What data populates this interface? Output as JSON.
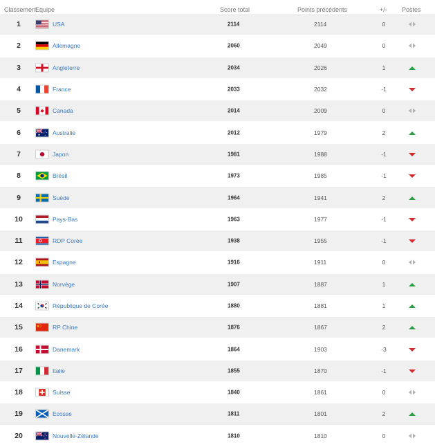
{
  "header": {
    "rank": "Classement",
    "team": "Equipe",
    "score": "Score total",
    "previous": "Points précédents",
    "diff": "+/-",
    "positions": "Postes"
  },
  "colors": {
    "up": "#2e9e45",
    "down": "#d32b2b",
    "same": "#b0b0b0",
    "link": "#3a79c1"
  },
  "rows": [
    {
      "rank": "1",
      "team": "USA",
      "flag": "usa",
      "score": "2114",
      "previous": "2114",
      "diff": "0",
      "trend": "same"
    },
    {
      "rank": "2",
      "team": "Allemagne",
      "flag": "germany",
      "score": "2060",
      "previous": "2049",
      "diff": "0",
      "trend": "same"
    },
    {
      "rank": "3",
      "team": "Angleterre",
      "flag": "england",
      "score": "2034",
      "previous": "2026",
      "diff": "1",
      "trend": "up"
    },
    {
      "rank": "4",
      "team": "France",
      "flag": "france",
      "score": "2033",
      "previous": "2032",
      "diff": "-1",
      "trend": "down"
    },
    {
      "rank": "5",
      "team": "Canada",
      "flag": "canada",
      "score": "2014",
      "previous": "2009",
      "diff": "0",
      "trend": "same"
    },
    {
      "rank": "6",
      "team": "Australie",
      "flag": "australia",
      "score": "2012",
      "previous": "1979",
      "diff": "2",
      "trend": "up"
    },
    {
      "rank": "7",
      "team": "Japon",
      "flag": "japan",
      "score": "1981",
      "previous": "1988",
      "diff": "-1",
      "trend": "down"
    },
    {
      "rank": "8",
      "team": "Brésil",
      "flag": "brazil",
      "score": "1973",
      "previous": "1985",
      "diff": "-1",
      "trend": "down"
    },
    {
      "rank": "9",
      "team": "Suède",
      "flag": "sweden",
      "score": "1964",
      "previous": "1941",
      "diff": "2",
      "trend": "up"
    },
    {
      "rank": "10",
      "team": "Pays-Bas",
      "flag": "netherlands",
      "score": "1963",
      "previous": "1977",
      "diff": "-1",
      "trend": "down"
    },
    {
      "rank": "11",
      "team": "RDP Corée",
      "flag": "north-korea",
      "score": "1938",
      "previous": "1955",
      "diff": "-1",
      "trend": "down"
    },
    {
      "rank": "12",
      "team": "Espagne",
      "flag": "spain",
      "score": "1916",
      "previous": "1911",
      "diff": "0",
      "trend": "same"
    },
    {
      "rank": "13",
      "team": "Norvège",
      "flag": "norway",
      "score": "1907",
      "previous": "1887",
      "diff": "1",
      "trend": "up"
    },
    {
      "rank": "14",
      "team": "République de Corée",
      "flag": "south-korea",
      "score": "1880",
      "previous": "1881",
      "diff": "1",
      "trend": "up"
    },
    {
      "rank": "15",
      "team": "RP Chine",
      "flag": "china",
      "score": "1876",
      "previous": "1867",
      "diff": "2",
      "trend": "up"
    },
    {
      "rank": "16",
      "team": "Danemark",
      "flag": "denmark",
      "score": "1864",
      "previous": "1903",
      "diff": "-3",
      "trend": "down"
    },
    {
      "rank": "17",
      "team": "Italie",
      "flag": "italy",
      "score": "1855",
      "previous": "1870",
      "diff": "-1",
      "trend": "down"
    },
    {
      "rank": "18",
      "team": "Suisse",
      "flag": "switzerland",
      "score": "1840",
      "previous": "1861",
      "diff": "0",
      "trend": "same"
    },
    {
      "rank": "19",
      "team": "Ecosse",
      "flag": "scotland",
      "score": "1811",
      "previous": "1801",
      "diff": "2",
      "trend": "up"
    },
    {
      "rank": "20",
      "team": "Nouvelle-Zélande",
      "flag": "new-zealand",
      "score": "1810",
      "previous": "1810",
      "diff": "0",
      "trend": "same"
    }
  ]
}
